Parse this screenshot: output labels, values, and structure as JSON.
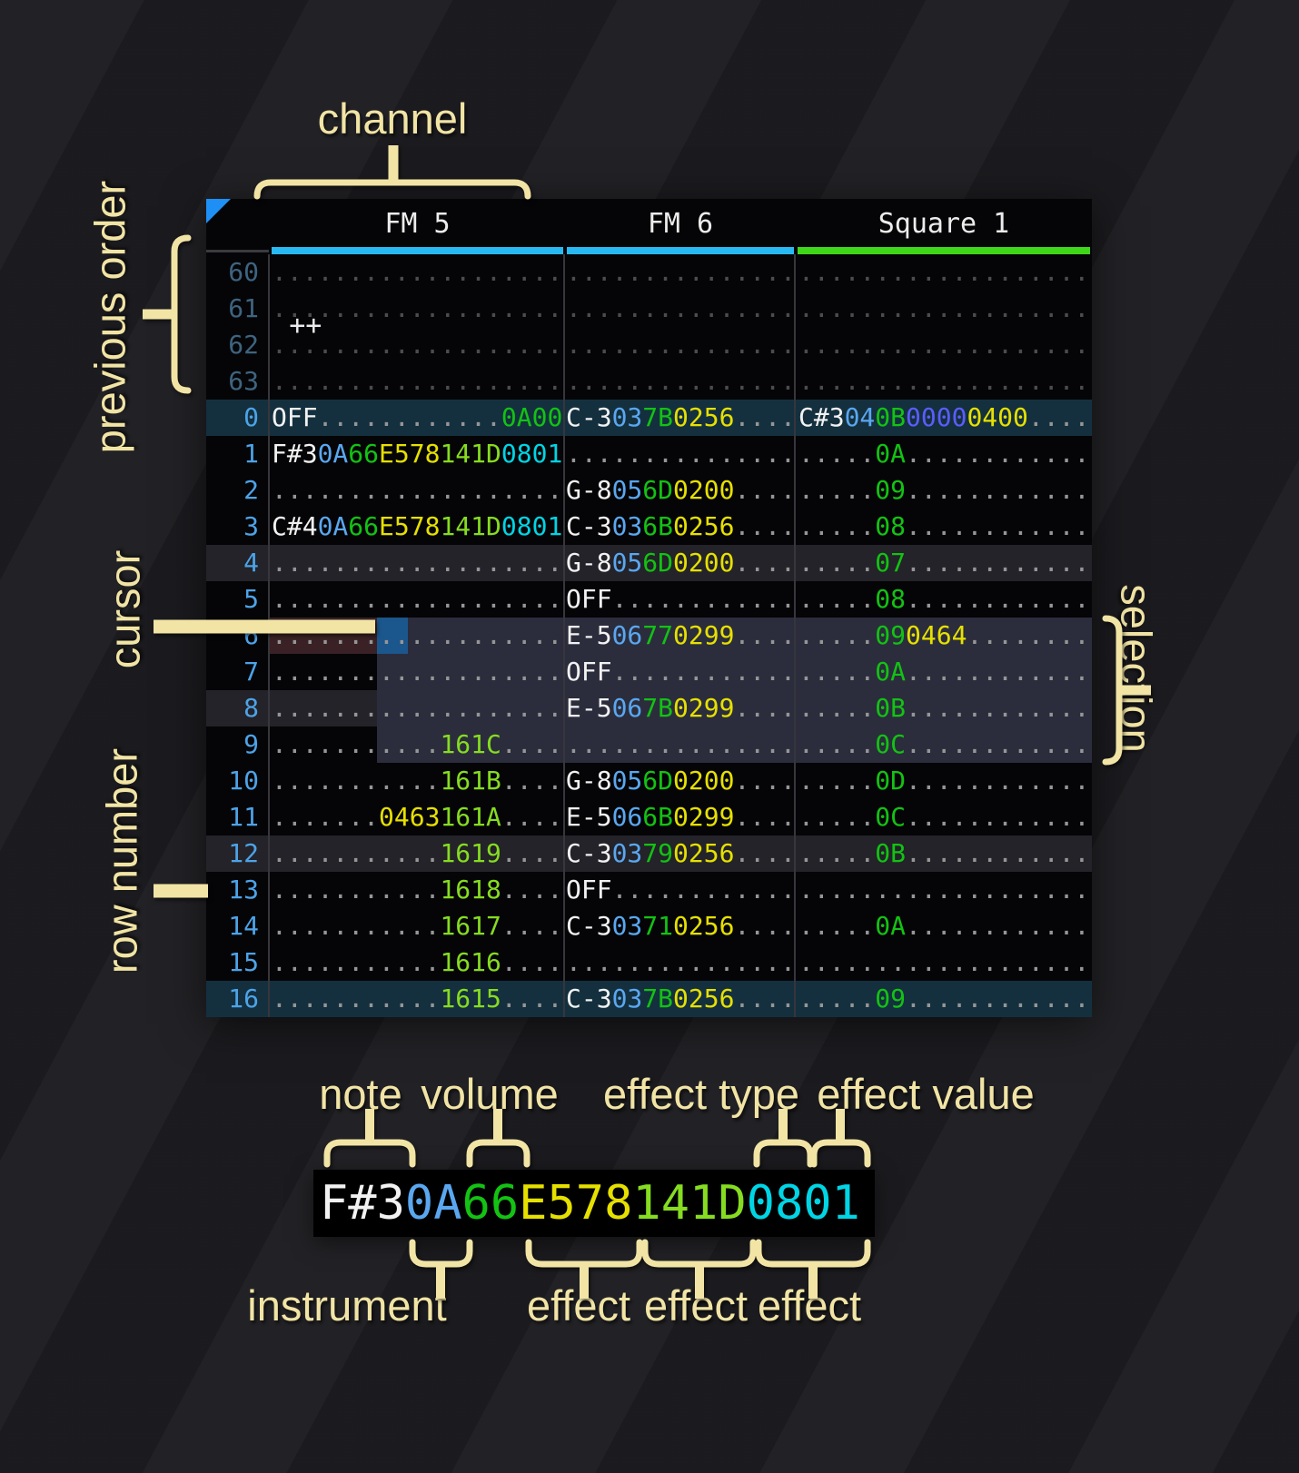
{
  "annotations": {
    "channel": "channel",
    "previous_order": "previous order",
    "cursor": "cursor",
    "row_number": "row number",
    "selection": "selection",
    "note": "note",
    "volume": "volume",
    "effect_type": "effect type",
    "effect_value": "effect value",
    "instrument": "instrument",
    "effect1": "effect",
    "effect2": "effect",
    "effect3": "effect"
  },
  "tracker": {
    "corner_label": "++",
    "channels": [
      {
        "name": "FM 5",
        "underline_color": "#29b9f2"
      },
      {
        "name": "FM 6",
        "underline_color": "#29b9f2"
      },
      {
        "name": "Square 1",
        "underline_color": "#3fd719"
      }
    ],
    "colors": {
      "n": "#f2f2f2",
      "i": "#5aa7f0",
      "v": "#13c213",
      "y": "#e6e000",
      "l": "#86dc20",
      "c": "#00d5e5",
      "b": "#5c5cff",
      "d": "#969696",
      "dd": "#4b4b50",
      "rownum": "#4da3e8",
      "rownum_dim": "#3e6480",
      "selection_bg": "#2b2d3d",
      "cursor_bg": "#1b568c",
      "cursor_row_bg": "#3a2126",
      "hl16_bg": "#14303f",
      "hl4_bg": "#232329",
      "triangle": "#1e90f5",
      "annotation": "#f1e4a5"
    },
    "rows": [
      {
        "num": "60",
        "style": "dim",
        "fm5": [
          [
            "...................",
            "dd"
          ]
        ],
        "fm6": [
          [
            "...............",
            "dd"
          ]
        ],
        "sq1": [
          [
            "...................",
            "dd"
          ]
        ]
      },
      {
        "num": "61",
        "style": "dim",
        "fm5": [
          [
            "...................",
            "dd"
          ]
        ],
        "fm6": [
          [
            "...............",
            "dd"
          ]
        ],
        "sq1": [
          [
            "...................",
            "dd"
          ]
        ]
      },
      {
        "num": "62",
        "style": "dim",
        "fm5": [
          [
            "...................",
            "dd"
          ]
        ],
        "fm6": [
          [
            "...............",
            "dd"
          ]
        ],
        "sq1": [
          [
            "...................",
            "dd"
          ]
        ]
      },
      {
        "num": "63",
        "style": "dim",
        "fm5": [
          [
            "...................",
            "dd"
          ]
        ],
        "fm6": [
          [
            "...............",
            "dd"
          ]
        ],
        "sq1": [
          [
            "...................",
            "dd"
          ]
        ]
      },
      {
        "num": "0",
        "style": "hl16",
        "fm5": [
          [
            "OFF",
            "n"
          ],
          [
            "............",
            "d"
          ],
          [
            "0A00",
            "v"
          ]
        ],
        "fm6": [
          [
            "C-3",
            "n"
          ],
          [
            "03",
            "i"
          ],
          [
            "7B",
            "v"
          ],
          [
            "0256",
            "y"
          ],
          [
            "....",
            "d"
          ]
        ],
        "sq1": [
          [
            "C#3",
            "n"
          ],
          [
            "04",
            "i"
          ],
          [
            "0B",
            "v"
          ],
          [
            "0000",
            "b"
          ],
          [
            "0400",
            "y"
          ],
          [
            "....",
            "d"
          ]
        ]
      },
      {
        "num": "1",
        "style": "",
        "fm5": [
          [
            "F#3",
            "n"
          ],
          [
            "0A",
            "i"
          ],
          [
            "66",
            "v"
          ],
          [
            "E578",
            "y"
          ],
          [
            "141D",
            "l"
          ],
          [
            "0801",
            "c"
          ]
        ],
        "fm6": [
          [
            "...............",
            "d"
          ]
        ],
        "sq1": [
          [
            ".....",
            "d"
          ],
          [
            "0A",
            "v"
          ],
          [
            "............",
            "d"
          ]
        ]
      },
      {
        "num": "2",
        "style": "",
        "fm5": [
          [
            "...................",
            "d"
          ]
        ],
        "fm6": [
          [
            "G-8",
            "n"
          ],
          [
            "05",
            "i"
          ],
          [
            "6D",
            "v"
          ],
          [
            "0200",
            "y"
          ],
          [
            "....",
            "d"
          ]
        ],
        "sq1": [
          [
            ".....",
            "d"
          ],
          [
            "09",
            "v"
          ],
          [
            "............",
            "d"
          ]
        ]
      },
      {
        "num": "3",
        "style": "",
        "fm5": [
          [
            "C#4",
            "n"
          ],
          [
            "0A",
            "i"
          ],
          [
            "66",
            "v"
          ],
          [
            "E578",
            "y"
          ],
          [
            "141D",
            "l"
          ],
          [
            "0801",
            "c"
          ]
        ],
        "fm6": [
          [
            "C-3",
            "n"
          ],
          [
            "03",
            "i"
          ],
          [
            "6B",
            "v"
          ],
          [
            "0256",
            "y"
          ],
          [
            "....",
            "d"
          ]
        ],
        "sq1": [
          [
            ".....",
            "d"
          ],
          [
            "08",
            "v"
          ],
          [
            "............",
            "d"
          ]
        ]
      },
      {
        "num": "4",
        "style": "hl4",
        "fm5": [
          [
            "...................",
            "d"
          ]
        ],
        "fm6": [
          [
            "G-8",
            "n"
          ],
          [
            "05",
            "i"
          ],
          [
            "6D",
            "v"
          ],
          [
            "0200",
            "y"
          ],
          [
            "....",
            "d"
          ]
        ],
        "sq1": [
          [
            ".....",
            "d"
          ],
          [
            "07",
            "v"
          ],
          [
            "............",
            "d"
          ]
        ]
      },
      {
        "num": "5",
        "style": "",
        "fm5": [
          [
            "...................",
            "d"
          ]
        ],
        "fm6": [
          [
            "OFF",
            "n"
          ],
          [
            "............",
            "d"
          ]
        ],
        "sq1": [
          [
            ".....",
            "d"
          ],
          [
            "08",
            "v"
          ],
          [
            "............",
            "d"
          ]
        ]
      },
      {
        "num": "6",
        "style": "",
        "fm5": [
          [
            "...................",
            "d"
          ]
        ],
        "fm6": [
          [
            "E-5",
            "n"
          ],
          [
            "06",
            "i"
          ],
          [
            "77",
            "v"
          ],
          [
            "0299",
            "y"
          ],
          [
            "....",
            "d"
          ]
        ],
        "sq1": [
          [
            ".....",
            "d"
          ],
          [
            "09",
            "v"
          ],
          [
            "0464",
            "y"
          ],
          [
            "........",
            "d"
          ]
        ]
      },
      {
        "num": "7",
        "style": "",
        "fm5": [
          [
            "...................",
            "d"
          ]
        ],
        "fm6": [
          [
            "OFF",
            "n"
          ],
          [
            "............",
            "d"
          ]
        ],
        "sq1": [
          [
            ".....",
            "d"
          ],
          [
            "0A",
            "v"
          ],
          [
            "............",
            "d"
          ]
        ]
      },
      {
        "num": "8",
        "style": "hl4",
        "fm5": [
          [
            "...................",
            "d"
          ]
        ],
        "fm6": [
          [
            "E-5",
            "n"
          ],
          [
            "06",
            "i"
          ],
          [
            "7B",
            "v"
          ],
          [
            "0299",
            "y"
          ],
          [
            "....",
            "d"
          ]
        ],
        "sq1": [
          [
            ".....",
            "d"
          ],
          [
            "0B",
            "v"
          ],
          [
            "............",
            "d"
          ]
        ]
      },
      {
        "num": "9",
        "style": "",
        "fm5": [
          [
            "...........",
            "d"
          ],
          [
            "161C",
            "l"
          ],
          [
            "....",
            "d"
          ]
        ],
        "fm6": [
          [
            "...............",
            "d"
          ]
        ],
        "sq1": [
          [
            ".....",
            "d"
          ],
          [
            "0C",
            "v"
          ],
          [
            "............",
            "d"
          ]
        ]
      },
      {
        "num": "10",
        "style": "",
        "fm5": [
          [
            "...........",
            "d"
          ],
          [
            "161B",
            "l"
          ],
          [
            "....",
            "d"
          ]
        ],
        "fm6": [
          [
            "G-8",
            "n"
          ],
          [
            "05",
            "i"
          ],
          [
            "6D",
            "v"
          ],
          [
            "0200",
            "y"
          ],
          [
            "....",
            "d"
          ]
        ],
        "sq1": [
          [
            ".....",
            "d"
          ],
          [
            "0D",
            "v"
          ],
          [
            "............",
            "d"
          ]
        ]
      },
      {
        "num": "11",
        "style": "",
        "fm5": [
          [
            ".......",
            "d"
          ],
          [
            "0463",
            "y"
          ],
          [
            "161A",
            "l"
          ],
          [
            "....",
            "d"
          ]
        ],
        "fm6": [
          [
            "E-5",
            "n"
          ],
          [
            "06",
            "i"
          ],
          [
            "6B",
            "v"
          ],
          [
            "0299",
            "y"
          ],
          [
            "....",
            "d"
          ]
        ],
        "sq1": [
          [
            ".....",
            "d"
          ],
          [
            "0C",
            "v"
          ],
          [
            "............",
            "d"
          ]
        ]
      },
      {
        "num": "12",
        "style": "hl4",
        "fm5": [
          [
            "...........",
            "d"
          ],
          [
            "1619",
            "l"
          ],
          [
            "....",
            "d"
          ]
        ],
        "fm6": [
          [
            "C-3",
            "n"
          ],
          [
            "03",
            "i"
          ],
          [
            "79",
            "v"
          ],
          [
            "0256",
            "y"
          ],
          [
            "....",
            "d"
          ]
        ],
        "sq1": [
          [
            ".....",
            "d"
          ],
          [
            "0B",
            "v"
          ],
          [
            "............",
            "d"
          ]
        ]
      },
      {
        "num": "13",
        "style": "",
        "fm5": [
          [
            "...........",
            "d"
          ],
          [
            "1618",
            "l"
          ],
          [
            "....",
            "d"
          ]
        ],
        "fm6": [
          [
            "OFF",
            "n"
          ],
          [
            "............",
            "d"
          ]
        ],
        "sq1": [
          [
            "...................",
            "d"
          ]
        ]
      },
      {
        "num": "14",
        "style": "",
        "fm5": [
          [
            "...........",
            "d"
          ],
          [
            "1617",
            "l"
          ],
          [
            "....",
            "d"
          ]
        ],
        "fm6": [
          [
            "C-3",
            "n"
          ],
          [
            "03",
            "i"
          ],
          [
            "71",
            "v"
          ],
          [
            "0256",
            "y"
          ],
          [
            "....",
            "d"
          ]
        ],
        "sq1": [
          [
            ".....",
            "d"
          ],
          [
            "0A",
            "v"
          ],
          [
            "............",
            "d"
          ]
        ]
      },
      {
        "num": "15",
        "style": "",
        "fm5": [
          [
            "...........",
            "d"
          ],
          [
            "1616",
            "l"
          ],
          [
            "....",
            "d"
          ]
        ],
        "fm6": [
          [
            "...............",
            "d"
          ]
        ],
        "sq1": [
          [
            "...................",
            "d"
          ]
        ]
      },
      {
        "num": "16",
        "style": "hl16",
        "fm5": [
          [
            "...........",
            "d"
          ],
          [
            "1615",
            "l"
          ],
          [
            "....",
            "d"
          ]
        ],
        "fm6": [
          [
            "C-3",
            "n"
          ],
          [
            "03",
            "i"
          ],
          [
            "7B",
            "v"
          ],
          [
            "0256",
            "y"
          ],
          [
            "....",
            "d"
          ]
        ],
        "sq1": [
          [
            ".....",
            "d"
          ],
          [
            "09",
            "v"
          ],
          [
            "............",
            "d"
          ]
        ]
      }
    ]
  },
  "example": {
    "segments": [
      [
        "F#3",
        "n"
      ],
      [
        "0A",
        "i"
      ],
      [
        "66",
        "v"
      ],
      [
        "E578",
        "y"
      ],
      [
        "141D",
        "l"
      ],
      [
        "0801",
        "c"
      ]
    ]
  }
}
